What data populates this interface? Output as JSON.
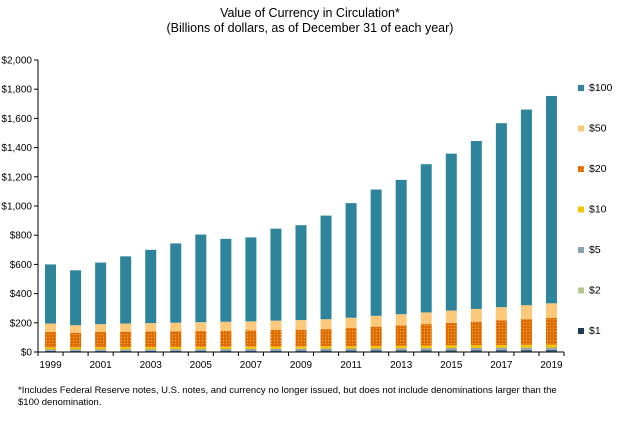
{
  "chart_data": {
    "type": "bar",
    "stacked": true,
    "title": "Value of Currency in Circulation*",
    "subtitle": "(Billions of dollars, as of December 31 of each year)",
    "xlabel": "",
    "ylabel": "",
    "ylim": [
      0,
      2000
    ],
    "y_ticks": [
      "$0",
      "$200",
      "$400",
      "$600",
      "$800",
      "$1,000",
      "$1,200",
      "$1,400",
      "$1,600",
      "$1,800",
      "$2,000"
    ],
    "categories": [
      "1999",
      "2000",
      "2001",
      "2002",
      "2003",
      "2004",
      "2005",
      "2006",
      "2007",
      "2008",
      "2009",
      "2010",
      "2011",
      "2012",
      "2013",
      "2014",
      "2015",
      "2016",
      "2017",
      "2018",
      "2019"
    ],
    "x_tick_labels": [
      "1999",
      "",
      "2001",
      "",
      "2003",
      "",
      "2005",
      "",
      "2007",
      "",
      "2009",
      "",
      "2011",
      "",
      "2013",
      "",
      "2015",
      "",
      "2017",
      "",
      "2019"
    ],
    "legend_position": "right",
    "grid": false,
    "series": [
      {
        "name": "$1",
        "color": "#1f3b57",
        "values": [
          7.4,
          7.5,
          7.6,
          7.8,
          8.0,
          8.2,
          8.4,
          8.6,
          8.9,
          9.2,
          9.5,
          9.8,
          10.1,
          10.4,
          10.8,
          11.2,
          11.6,
          12.0,
          12.4,
          12.7,
          13.0
        ]
      },
      {
        "name": "$2",
        "color": "#b6c98a",
        "values": [
          1.2,
          1.2,
          1.3,
          1.3,
          1.4,
          1.4,
          1.5,
          1.5,
          1.6,
          1.7,
          1.8,
          1.9,
          2.0,
          2.1,
          2.1,
          2.2,
          2.3,
          2.4,
          2.5,
          2.6,
          2.7
        ]
      },
      {
        "name": "$5",
        "color": "#8ea0b4",
        "values": [
          8.4,
          8.6,
          8.8,
          9.0,
          9.3,
          9.6,
          9.9,
          10.2,
          10.5,
          10.8,
          11.1,
          11.3,
          11.6,
          11.9,
          12.3,
          12.6,
          13.0,
          13.4,
          13.8,
          14.2,
          14.6
        ]
      },
      {
        "name": "$10",
        "color": "#f5c400",
        "values": [
          14.8,
          14.4,
          14.9,
          15.1,
          15.2,
          15.4,
          15.6,
          15.7,
          15.8,
          16.0,
          16.2,
          16.4,
          16.8,
          17.3,
          17.7,
          18.2,
          18.7,
          19.1,
          19.5,
          19.9,
          20.3
        ]
      },
      {
        "name": "$20",
        "color": "#e06c00",
        "values": [
          105,
          100,
          104,
          106,
          107,
          108,
          109,
          110,
          111,
          113,
          114,
          117,
          124,
          132,
          139,
          147,
          154,
          161,
          169,
          176,
          183
        ]
      },
      {
        "name": "$50",
        "color": "#fcc97a",
        "values": [
          58,
          52,
          54,
          56,
          57,
          58,
          60,
          61,
          62,
          64,
          66,
          68,
          70,
          74,
          77,
          80,
          84,
          87,
          90,
          95,
          100
        ]
      },
      {
        "name": "$100",
        "color": "#2e859b",
        "values": [
          405,
          376,
          422,
          460,
          502,
          543,
          600,
          568,
          575,
          630,
          650,
          710,
          785,
          865,
          920,
          1015,
          1075,
          1150,
          1260,
          1340,
          1420
        ]
      }
    ]
  },
  "footnote": "*Includes Federal Reserve notes, U.S. notes, and currency no longer issued, but does not include denominations larger than the $100 denomination."
}
